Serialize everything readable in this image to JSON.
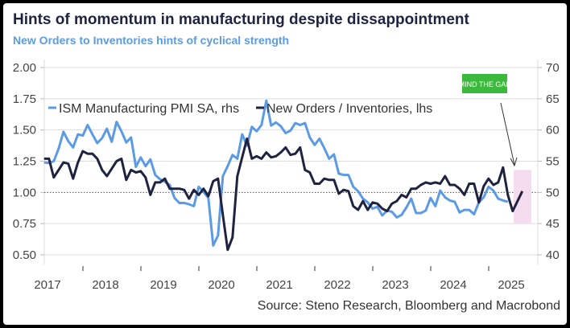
{
  "chart_data": {
    "type": "line",
    "title": "Hints of momentum in manufacturing despite dissappointment",
    "subtitle": "New Orders to Inventories hints of cyclical strength",
    "source": "Source: Steno Research, Bloomberg and Macrobond",
    "annotation": "MIND THE GAP",
    "x_start": 2017.33,
    "x_ticks": [
      "2017",
      "2018",
      "2019",
      "2020",
      "2021",
      "2022",
      "2023",
      "2024",
      "2025"
    ],
    "y_left_ticks": [
      "0.50",
      "0.75",
      "1.00",
      "1.25",
      "1.50",
      "1.75",
      "2.00"
    ],
    "y_right_ticks": [
      "40",
      "45",
      "50",
      "55",
      "60",
      "65",
      "70"
    ],
    "ylim_left": [
      0.5,
      2.0
    ],
    "ylim_right": [
      40,
      70
    ],
    "reference_line": 1.0,
    "series": [
      {
        "name": "ISM Manufacturing PMI SA, rhs",
        "axis": "right",
        "color": "#5b9be6",
        "values": [
          54.8,
          54.7,
          55.0,
          57.0,
          59.7,
          58.2,
          57.2,
          59.3,
          59.1,
          60.8,
          59.3,
          57.9,
          58.7,
          60.2,
          58.1,
          61.3,
          59.8,
          58.0,
          58.8,
          54.1,
          55.6,
          54.2,
          55.3,
          52.8,
          52.1,
          51.7,
          51.2,
          49.1,
          48.3,
          48.3,
          48.1,
          47.8,
          50.9,
          50.1,
          49.1,
          41.5,
          43.1,
          52.6,
          54.2,
          56.0,
          55.4,
          59.3,
          57.5,
          60.5,
          59.8,
          60.8,
          64.7,
          60.7,
          61.2,
          60.6,
          59.5,
          59.9,
          61.1,
          60.8,
          61.1,
          58.8,
          57.6,
          58.6,
          57.1,
          55.4,
          56.1,
          53.0,
          52.8,
          52.8,
          50.9,
          50.2,
          49.0,
          48.4,
          47.4,
          47.7,
          46.3,
          47.1,
          46.9,
          46.0,
          46.4,
          47.6,
          49.0,
          46.7,
          46.7,
          47.1,
          49.1,
          47.8,
          50.3,
          49.2,
          48.7,
          48.5,
          46.8,
          47.2,
          47.2,
          46.5,
          48.4,
          49.2,
          50.9,
          50.3,
          49.0,
          48.7,
          48.5
        ]
      },
      {
        "name": "New Orders / Inventories, lhs",
        "axis": "left",
        "color": "#1f2340",
        "values": [
          1.27,
          1.27,
          1.12,
          1.18,
          1.24,
          1.23,
          1.11,
          1.24,
          1.33,
          1.31,
          1.31,
          1.27,
          1.18,
          1.13,
          1.19,
          1.25,
          1.27,
          1.1,
          1.18,
          1.16,
          1.17,
          1.12,
          0.98,
          1.08,
          1.08,
          1.11,
          1.03,
          1.03,
          1.03,
          1.02,
          0.95,
          1.02,
          0.98,
          1.03,
          0.97,
          1.09,
          1.11,
          0.82,
          0.54,
          0.64,
          1.13,
          1.28,
          1.43,
          1.27,
          1.29,
          1.27,
          1.32,
          1.28,
          1.29,
          1.32,
          1.36,
          1.3,
          1.31,
          1.36,
          1.18,
          1.16,
          1.07,
          1.07,
          1.11,
          1.1,
          1.1,
          0.99,
          1.02,
          1.01,
          0.89,
          0.86,
          0.93,
          0.86,
          0.92,
          0.91,
          0.87,
          0.85,
          0.91,
          0.93,
          0.98,
          0.96,
          1.03,
          1.03,
          1.06,
          1.08,
          1.07,
          1.08,
          1.07,
          1.13,
          1.06,
          1.06,
          1.03,
          0.98,
          1.07,
          1.07,
          0.92,
          1.05,
          1.11,
          1.06,
          1.08,
          1.2,
          0.98,
          0.85,
          0.93,
          1.01
        ]
      }
    ],
    "highlight_range_left": [
      0.75,
      1.18
    ],
    "colors": {
      "highlight": "#f6dcef",
      "annotation_bg": "#3cb93c"
    }
  }
}
